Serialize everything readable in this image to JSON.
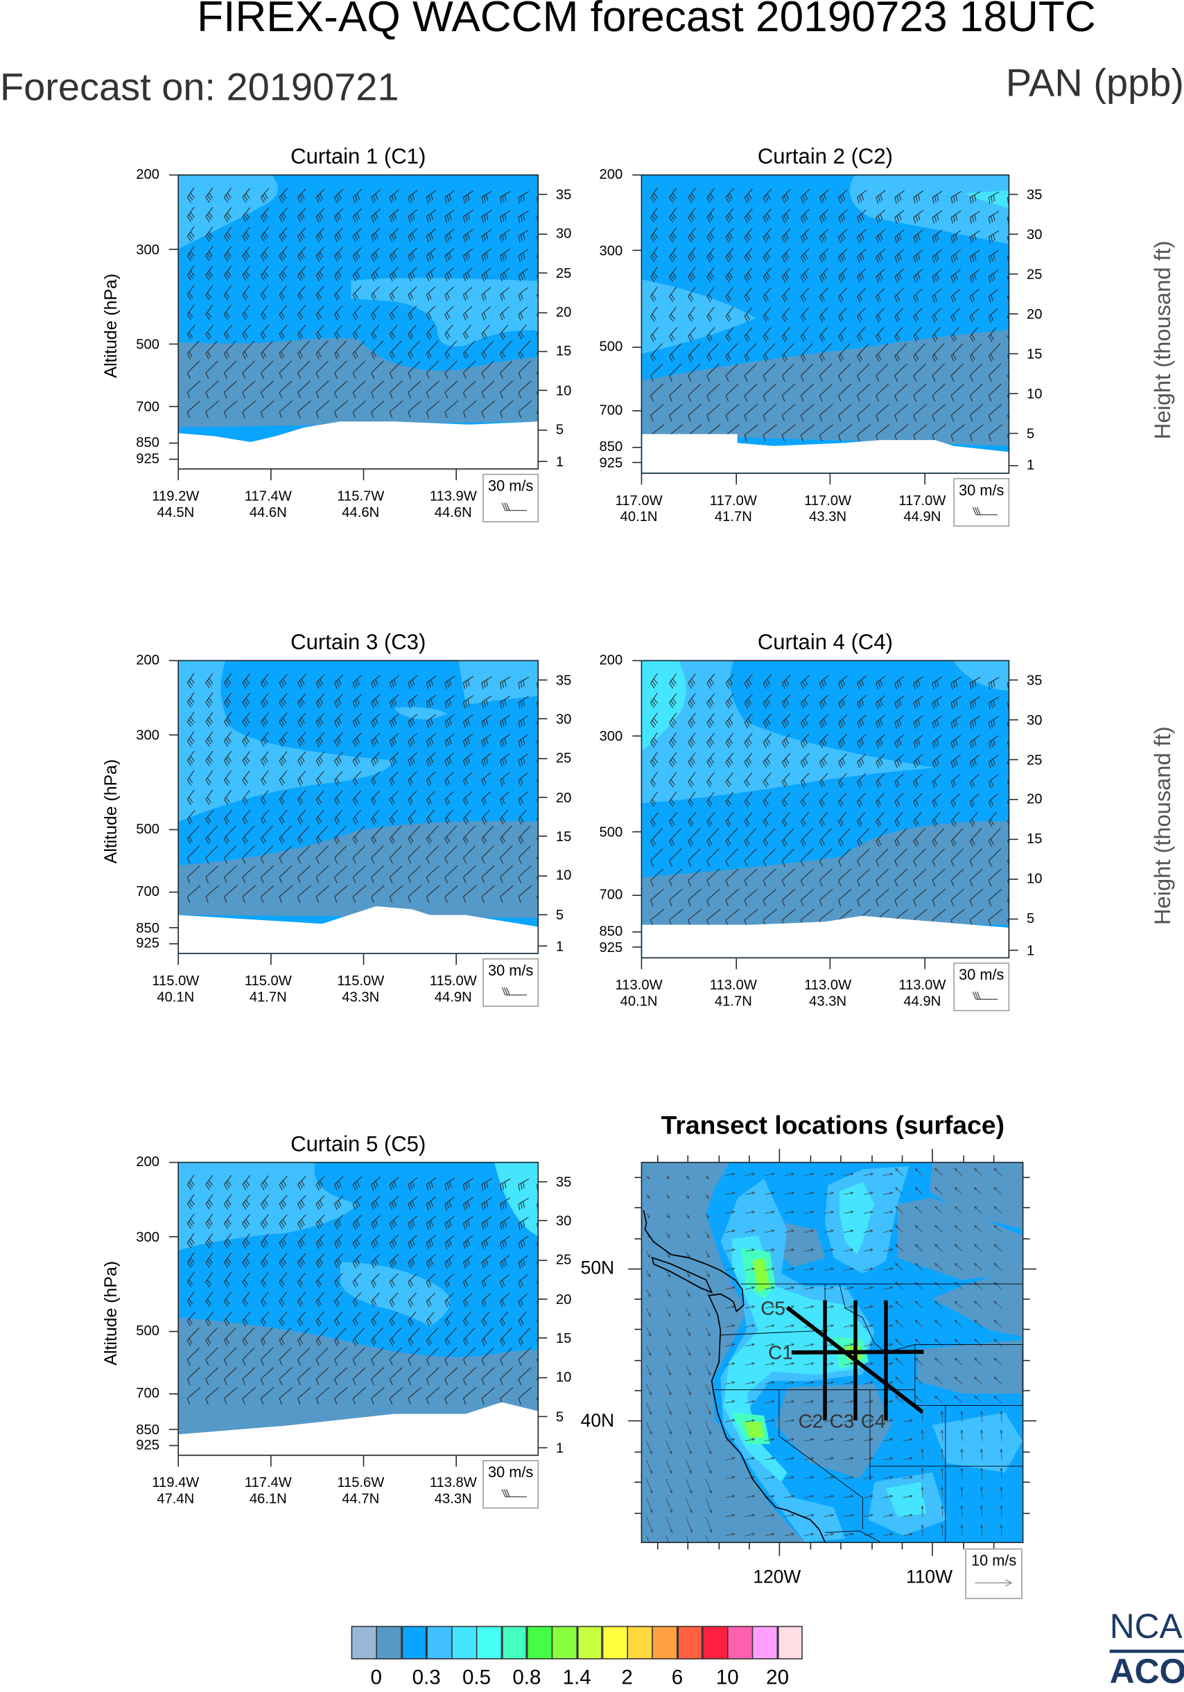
{
  "header": {
    "title": "FIREX-AQ WACCM forecast 20190723 18UTC",
    "forecast_on": "Forecast on: 20190721",
    "variable": "PAN (ppb)"
  },
  "chart_data": [
    {
      "type": "heatmap",
      "title": "Curtain 1 (C1)",
      "ylabel": "Altitude (hPa)",
      "y2label": "",
      "y_ticks": [
        "200",
        "300",
        "500",
        "700",
        "850",
        "925"
      ],
      "y2_ticks": [
        "35",
        "30",
        "25",
        "20",
        "15",
        "10",
        "5",
        "1"
      ],
      "x_ticks": [
        {
          "lon": "119.2W",
          "lat": "44.5N"
        },
        {
          "lon": "117.4W",
          "lat": "44.6N"
        },
        {
          "lon": "115.7W",
          "lat": "44.6N"
        },
        {
          "lon": "113.9W",
          "lat": "44.6N"
        }
      ],
      "wind_legend": "30 m/s"
    },
    {
      "type": "heatmap",
      "title": "Curtain 2 (C2)",
      "ylabel": "",
      "y2label": "Height (thousand ft)",
      "y_ticks": [
        "200",
        "300",
        "500",
        "700",
        "850",
        "925"
      ],
      "y2_ticks": [
        "35",
        "30",
        "25",
        "20",
        "15",
        "10",
        "5",
        "1"
      ],
      "x_ticks": [
        {
          "lon": "117.0W",
          "lat": "40.1N"
        },
        {
          "lon": "117.0W",
          "lat": "41.7N"
        },
        {
          "lon": "117.0W",
          "lat": "43.3N"
        },
        {
          "lon": "117.0W",
          "lat": "44.9N"
        }
      ],
      "wind_legend": "30 m/s"
    },
    {
      "type": "heatmap",
      "title": "Curtain 3 (C3)",
      "ylabel": "Altitude (hPa)",
      "y2label": "",
      "y_ticks": [
        "200",
        "300",
        "500",
        "700",
        "850",
        "925"
      ],
      "y2_ticks": [
        "35",
        "30",
        "25",
        "20",
        "15",
        "10",
        "5",
        "1"
      ],
      "x_ticks": [
        {
          "lon": "115.0W",
          "lat": "40.1N"
        },
        {
          "lon": "115.0W",
          "lat": "41.7N"
        },
        {
          "lon": "115.0W",
          "lat": "43.3N"
        },
        {
          "lon": "115.0W",
          "lat": "44.9N"
        }
      ],
      "wind_legend": "30 m/s"
    },
    {
      "type": "heatmap",
      "title": "Curtain 4 (C4)",
      "ylabel": "",
      "y2label": "Height (thousand ft)",
      "y_ticks": [
        "200",
        "300",
        "500",
        "700",
        "850",
        "925"
      ],
      "y2_ticks": [
        "35",
        "30",
        "25",
        "20",
        "15",
        "10",
        "5",
        "1"
      ],
      "x_ticks": [
        {
          "lon": "113.0W",
          "lat": "40.1N"
        },
        {
          "lon": "113.0W",
          "lat": "41.7N"
        },
        {
          "lon": "113.0W",
          "lat": "43.3N"
        },
        {
          "lon": "113.0W",
          "lat": "44.9N"
        }
      ],
      "wind_legend": "30 m/s"
    },
    {
      "type": "heatmap",
      "title": "Curtain 5 (C5)",
      "ylabel": "Altitude (hPa)",
      "y2label": "",
      "y_ticks": [
        "200",
        "300",
        "500",
        "700",
        "850",
        "925"
      ],
      "y2_ticks": [
        "35",
        "30",
        "25",
        "20",
        "15",
        "10",
        "5",
        "1"
      ],
      "x_ticks": [
        {
          "lon": "119.4W",
          "lat": "47.4N"
        },
        {
          "lon": "117.4W",
          "lat": "46.1N"
        },
        {
          "lon": "115.6W",
          "lat": "44.7N"
        },
        {
          "lon": "113.8W",
          "lat": "43.3N"
        }
      ],
      "wind_legend": "30 m/s"
    },
    {
      "type": "heatmap",
      "title": "Transect locations (surface)",
      "lat_ticks": [
        "50N",
        "40N"
      ],
      "lon_ticks": [
        "120W",
        "110W"
      ],
      "transects": [
        "C1",
        "C2",
        "C3",
        "C4",
        "C5"
      ],
      "wind_legend": "10 m/s"
    }
  ],
  "colorbar": {
    "colors": [
      "#98b8d8",
      "#5599c8",
      "#0aa5ff",
      "#40c0ff",
      "#45e5ff",
      "#45fff5",
      "#45ffc0",
      "#45ff45",
      "#88ff40",
      "#c8ff40",
      "#ffff40",
      "#ffd840",
      "#ffa040",
      "#ff6040",
      "#ff2040",
      "#ff60b0",
      "#ffa0ff",
      "#ffdde5"
    ],
    "labels": [
      "0",
      "0.3",
      "0.5",
      "0.8",
      "1.4",
      "2",
      "6",
      "10",
      "20"
    ]
  },
  "logo": {
    "top": "NCAR",
    "bottom": "ACOM"
  }
}
